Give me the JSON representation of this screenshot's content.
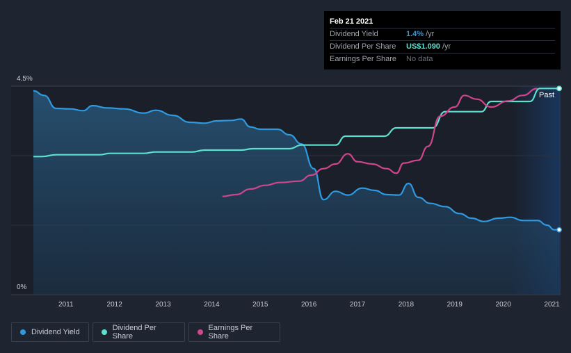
{
  "tooltip": {
    "date": "Feb 21 2021",
    "rows": [
      {
        "label": "Dividend Yield",
        "value": "1.4%",
        "unit": "/yr"
      },
      {
        "label": "Dividend Per Share",
        "value": "US$1.090",
        "unit": "/yr"
      },
      {
        "label": "Earnings Per Share",
        "value": "No data",
        "unit": ""
      }
    ]
  },
  "past_label": "Past",
  "legend": [
    {
      "label": "Dividend Yield",
      "color": "#2f9ae0"
    },
    {
      "label": "Dividend Per Share",
      "color": "#5ce0cf"
    },
    {
      "label": "Earnings Per Share",
      "color": "#d0468d"
    }
  ],
  "chart_data": {
    "type": "line",
    "title": "",
    "xlabel": "",
    "ylabel": "",
    "x_ticks": [
      "2011",
      "2012",
      "2013",
      "2014",
      "2015",
      "2016",
      "2017",
      "2018",
      "2019",
      "2020",
      "2021"
    ],
    "y_ticks": [
      "4.5%",
      "0%"
    ],
    "xlim": [
      2010.33,
      2021.15
    ],
    "ylim": [
      0,
      4.5
    ],
    "grid": true,
    "series": [
      {
        "name": "Dividend Yield",
        "color": "#2f9ae0",
        "area": true,
        "points": [
          [
            2010.33,
            4.4
          ],
          [
            2010.55,
            4.3
          ],
          [
            2010.8,
            4.02
          ],
          [
            2011.1,
            4.01
          ],
          [
            2011.35,
            3.97
          ],
          [
            2011.55,
            4.08
          ],
          [
            2011.85,
            4.03
          ],
          [
            2012.2,
            4.01
          ],
          [
            2012.6,
            3.92
          ],
          [
            2012.85,
            3.98
          ],
          [
            2013.2,
            3.87
          ],
          [
            2013.55,
            3.72
          ],
          [
            2013.85,
            3.7
          ],
          [
            2014.1,
            3.75
          ],
          [
            2014.4,
            3.76
          ],
          [
            2014.6,
            3.79
          ],
          [
            2014.8,
            3.62
          ],
          [
            2015.0,
            3.57
          ],
          [
            2015.35,
            3.57
          ],
          [
            2015.6,
            3.45
          ],
          [
            2015.85,
            3.25
          ],
          [
            2016.1,
            2.72
          ],
          [
            2016.3,
            2.05
          ],
          [
            2016.55,
            2.23
          ],
          [
            2016.8,
            2.15
          ],
          [
            2017.1,
            2.3
          ],
          [
            2017.35,
            2.25
          ],
          [
            2017.6,
            2.16
          ],
          [
            2017.85,
            2.15
          ],
          [
            2018.05,
            2.4
          ],
          [
            2018.25,
            2.1
          ],
          [
            2018.5,
            1.97
          ],
          [
            2018.8,
            1.9
          ],
          [
            2019.1,
            1.75
          ],
          [
            2019.35,
            1.65
          ],
          [
            2019.6,
            1.58
          ],
          [
            2019.9,
            1.65
          ],
          [
            2020.15,
            1.67
          ],
          [
            2020.4,
            1.6
          ],
          [
            2020.7,
            1.6
          ],
          [
            2020.9,
            1.5
          ],
          [
            2021.05,
            1.4
          ],
          [
            2021.15,
            1.4
          ]
        ]
      },
      {
        "name": "Dividend Per Share",
        "color": "#5ce0cf",
        "area": false,
        "points": [
          [
            2010.33,
            2.98
          ],
          [
            2010.5,
            2.98
          ],
          [
            2010.8,
            3.02
          ],
          [
            2011.3,
            3.02
          ],
          [
            2011.7,
            3.02
          ],
          [
            2011.9,
            3.05
          ],
          [
            2012.6,
            3.05
          ],
          [
            2012.85,
            3.08
          ],
          [
            2013.6,
            3.08
          ],
          [
            2013.85,
            3.12
          ],
          [
            2014.6,
            3.12
          ],
          [
            2014.85,
            3.15
          ],
          [
            2015.6,
            3.15
          ],
          [
            2015.85,
            3.23
          ],
          [
            2016.55,
            3.23
          ],
          [
            2016.75,
            3.42
          ],
          [
            2017.55,
            3.42
          ],
          [
            2017.8,
            3.6
          ],
          [
            2018.55,
            3.6
          ],
          [
            2018.8,
            3.95
          ],
          [
            2019.55,
            3.95
          ],
          [
            2019.75,
            4.17
          ],
          [
            2020.55,
            4.17
          ],
          [
            2020.75,
            4.45
          ],
          [
            2021.15,
            4.45
          ]
        ]
      },
      {
        "name": "Earnings Per Share",
        "color": "#d0468d",
        "area": false,
        "points": [
          [
            2014.22,
            2.12
          ],
          [
            2014.5,
            2.16
          ],
          [
            2014.8,
            2.28
          ],
          [
            2015.1,
            2.36
          ],
          [
            2015.4,
            2.42
          ],
          [
            2015.8,
            2.45
          ],
          [
            2016.05,
            2.58
          ],
          [
            2016.3,
            2.72
          ],
          [
            2016.55,
            2.82
          ],
          [
            2016.8,
            3.04
          ],
          [
            2017.0,
            2.87
          ],
          [
            2017.3,
            2.82
          ],
          [
            2017.6,
            2.72
          ],
          [
            2017.8,
            2.62
          ],
          [
            2017.95,
            2.84
          ],
          [
            2018.25,
            2.9
          ],
          [
            2018.45,
            3.2
          ],
          [
            2018.7,
            3.85
          ],
          [
            2019.0,
            4.05
          ],
          [
            2019.2,
            4.3
          ],
          [
            2019.45,
            4.22
          ],
          [
            2019.75,
            4.05
          ],
          [
            2020.1,
            4.18
          ],
          [
            2020.4,
            4.3
          ],
          [
            2020.7,
            4.45
          ]
        ]
      }
    ]
  }
}
